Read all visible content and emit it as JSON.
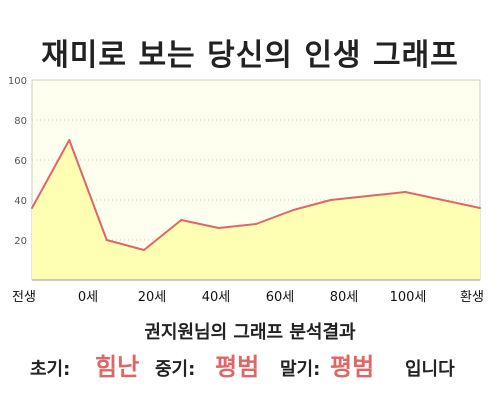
{
  "chart_data": {
    "type": "area",
    "title": "재미로 보는 당신의 인생 그래프",
    "xlabel": "",
    "ylabel": "",
    "x_tick_labels": [
      "전생",
      "0세",
      "20세",
      "40세",
      "60세",
      "80세",
      "100세",
      "환생"
    ],
    "y_ticks": [
      20,
      40,
      60,
      80,
      100
    ],
    "ylim": [
      0,
      100
    ],
    "grid": "horizontal dotted",
    "series": [
      {
        "values": [
          36,
          70,
          20,
          15,
          30,
          26,
          28,
          35,
          40,
          42,
          44,
          40,
          36
        ]
      }
    ],
    "colors": {
      "line": "#e06666",
      "fill": "#ffffb3",
      "plot_bg": "#fffff0"
    }
  },
  "result": {
    "heading": "권지원님의 그래프 분석결과",
    "early_label": "초기:",
    "early_value": "힘난",
    "mid_label": "중기:",
    "mid_value": "평범",
    "late_label": "말기:",
    "late_value": "평범",
    "ending": "입니다",
    "value_color": "#e06666"
  }
}
